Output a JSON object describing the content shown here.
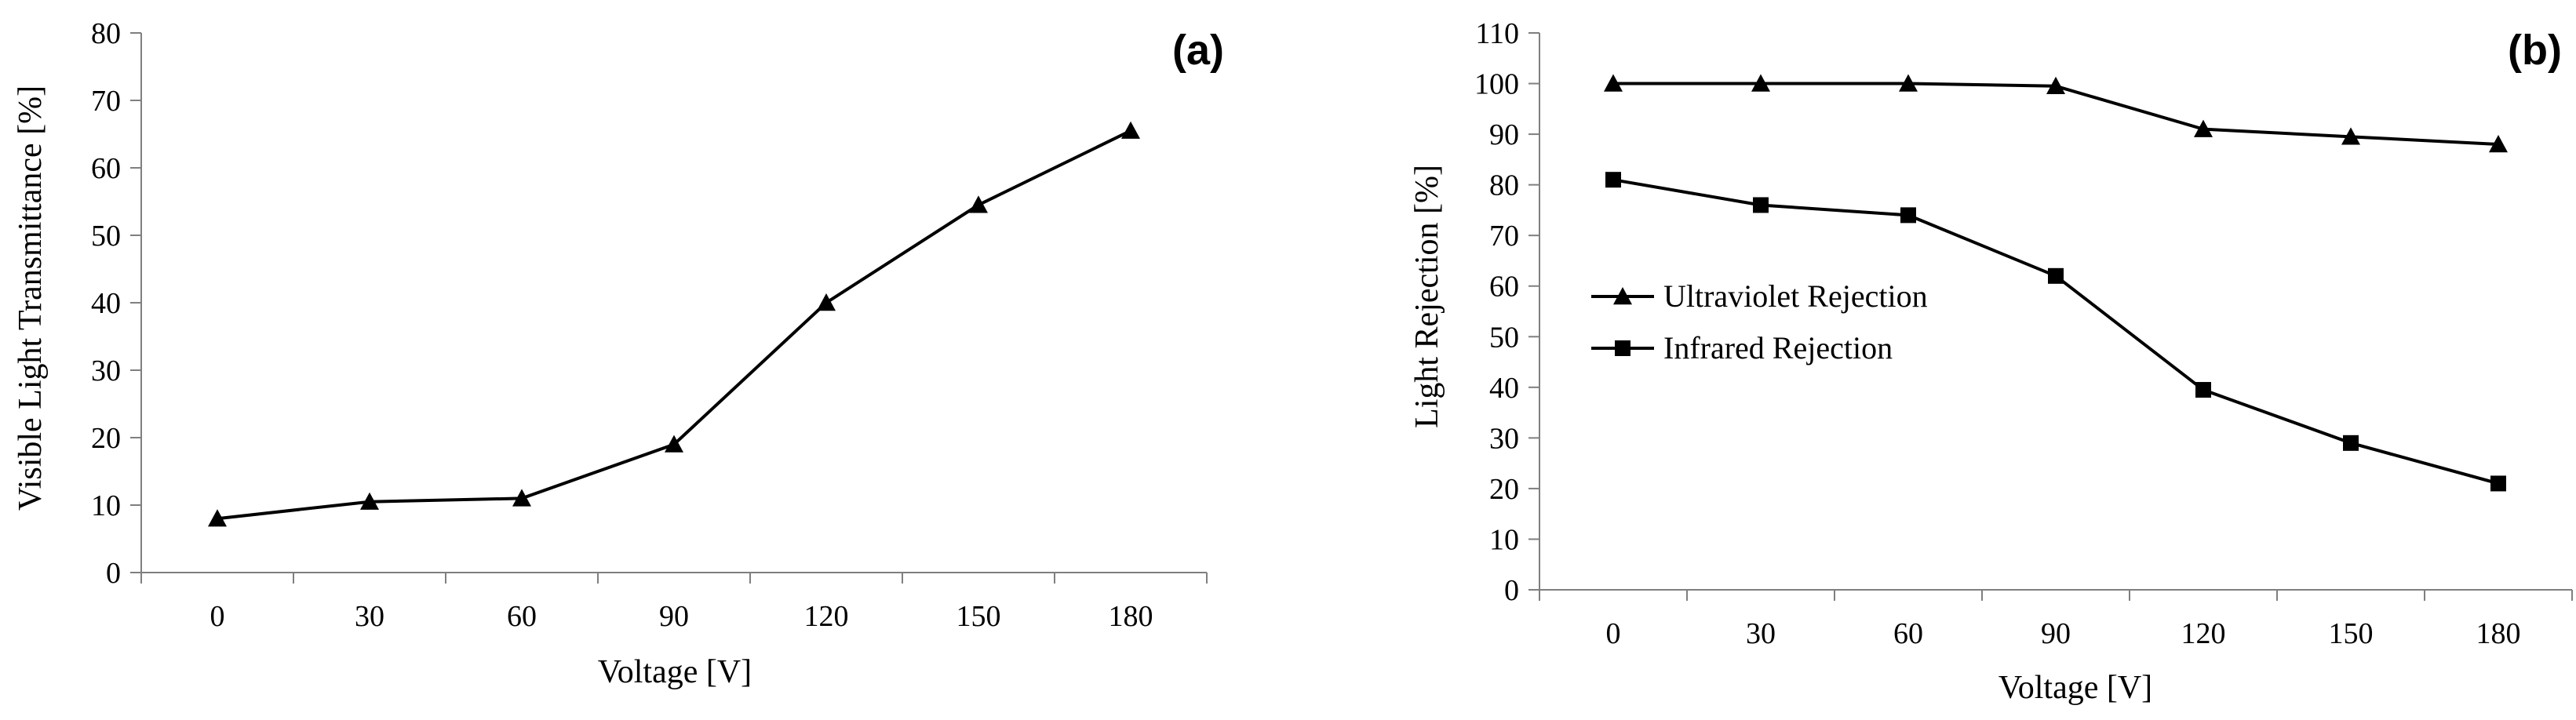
{
  "chart_data": [
    {
      "type": "line",
      "panel_label": "(a)",
      "categories": [
        "0",
        "30",
        "60",
        "90",
        "120",
        "150",
        "180"
      ],
      "xlabel": "Voltage [V]",
      "ylabel": "Visible Light Transmittance [%]",
      "ylim": [
        0,
        80
      ],
      "yticks": [
        "0",
        "10",
        "20",
        "30",
        "40",
        "50",
        "60",
        "70",
        "80"
      ],
      "grid": false,
      "series": [
        {
          "name": "",
          "marker": "triangle",
          "color": "#000000",
          "values": [
            8,
            10.5,
            11,
            19,
            40,
            54.5,
            65.5
          ]
        }
      ]
    },
    {
      "type": "line",
      "panel_label": "(b)",
      "categories": [
        "0",
        "30",
        "60",
        "90",
        "120",
        "150",
        "180"
      ],
      "xlabel": "Voltage [V]",
      "ylabel": "Light Rejection [%]",
      "ylim": [
        0,
        110
      ],
      "yticks": [
        "0",
        "10",
        "20",
        "30",
        "40",
        "50",
        "60",
        "70",
        "80",
        "90",
        "100",
        "110"
      ],
      "grid": false,
      "legend_position": "left",
      "series": [
        {
          "name": "Ultraviolet Rejection",
          "marker": "triangle",
          "color": "#000000",
          "values": [
            100,
            100,
            100,
            99.5,
            91,
            89.5,
            88
          ]
        },
        {
          "name": "Infrared Rejection",
          "marker": "square",
          "color": "#000000",
          "values": [
            81,
            76,
            74,
            62,
            39.5,
            29,
            21
          ]
        }
      ]
    }
  ]
}
